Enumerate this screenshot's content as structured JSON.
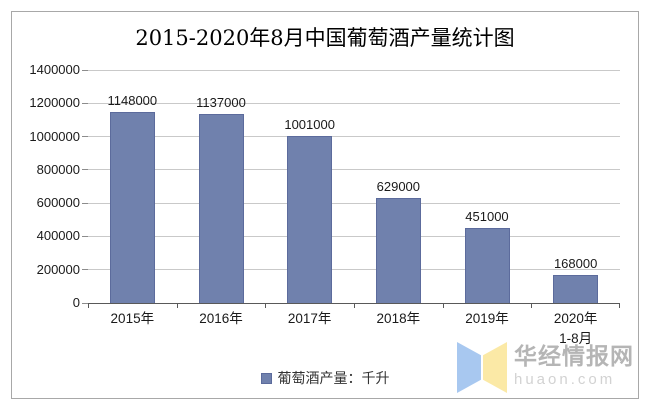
{
  "title": "2015-2020年8月中国葡萄酒产量统计图",
  "chart_data": {
    "type": "bar",
    "title": "2015-2020年8月中国葡萄酒产量统计图",
    "categories": [
      "2015年",
      "2016年",
      "2017年",
      "2018年",
      "2019年",
      "2020年"
    ],
    "category_sub_labels": [
      "",
      "",
      "",
      "",
      "",
      "1-8月"
    ],
    "values": [
      1148000,
      1137000,
      1001000,
      629000,
      451000,
      168000
    ],
    "data_labels": [
      "1148000",
      "1137000",
      "1001000",
      "629000",
      "451000",
      "168000"
    ],
    "series_name": "葡萄酒产量：千升",
    "xlabel": "",
    "ylabel": "",
    "ylim": [
      0,
      1400000
    ],
    "y_ticks": [
      0,
      200000,
      400000,
      600000,
      800000,
      1000000,
      1200000,
      1400000
    ],
    "grid": true,
    "legend_position": "bottom"
  },
  "legend": {
    "label": "葡萄酒产量：千升"
  },
  "watermark": {
    "brand": "华经情报网",
    "domain": "huaon.com"
  },
  "colors": {
    "bar_fill": "#7081ad",
    "bar_border": "#5c6b9c",
    "gridline": "#c9c9c9",
    "axis": "#595959",
    "text": "#1a1a1a",
    "title_text": "#000000",
    "outer_border": "#a8a8a8",
    "watermark_brand": "#b5b5b5",
    "watermark_domain": "#d2d2d2",
    "logo_blue": "#a8c8f0",
    "logo_yellow": "#fbe9a6"
  }
}
